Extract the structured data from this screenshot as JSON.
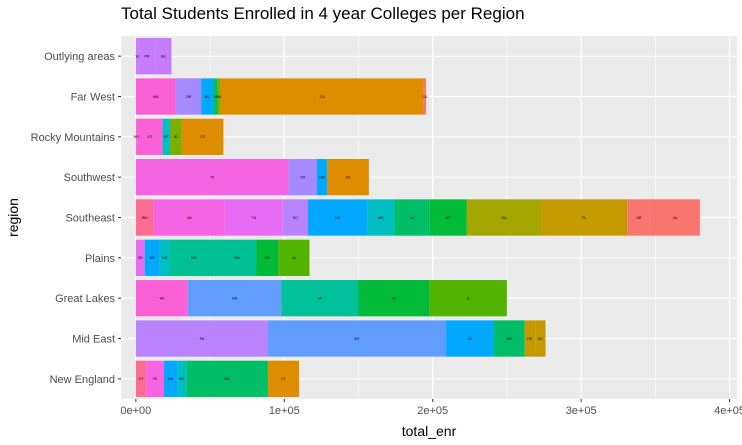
{
  "chart_data": {
    "type": "bar",
    "orientation": "horizontal",
    "stacked": true,
    "title": "Total Students Enrolled in 4 year Colleges per Region",
    "xlabel": "total_enr",
    "ylabel": "region",
    "xlim": [
      -10000,
      405000
    ],
    "x_ticks": [
      0,
      100000,
      200000,
      300000,
      400000
    ],
    "x_tick_labels": [
      "0e+00",
      "1e+05",
      "2e+05",
      "3e+05",
      "4e+05"
    ],
    "grid": true,
    "legend": "none",
    "categories": [
      "Outlying areas",
      "Far West",
      "Rocky Mountains",
      "Southwest",
      "Southeast",
      "Plains",
      "Great Lakes",
      "Mid East",
      "New England"
    ],
    "rows": [
      {
        "region": "Outlying areas",
        "segments": [
          {
            "label": "VI",
            "value": 2000,
            "color": "#c77cff"
          },
          {
            "label": "PR",
            "value": 11000,
            "color": "#c77cff"
          },
          {
            "label": "GU",
            "value": 11000,
            "color": "#c77cff"
          }
        ]
      },
      {
        "region": "Far West",
        "segments": [
          {
            "label": "WA",
            "value": 27000,
            "color": "#fb61d7"
          },
          {
            "label": "OR",
            "value": 17000,
            "color": "#a58aff"
          },
          {
            "label": "NV",
            "value": 8000,
            "color": "#00a9ff"
          },
          {
            "label": "HI",
            "value": 3000,
            "color": "#00be67"
          },
          {
            "label": "AK",
            "value": 2000,
            "color": "#7cae00"
          },
          {
            "label": "CA",
            "value": 137000,
            "color": "#de8c00"
          },
          {
            "label": "CA",
            "value": 1500,
            "color": "#f8766d"
          }
        ]
      },
      {
        "region": "Rocky Mountains",
        "segments": [
          {
            "label": "WY",
            "value": 1000,
            "color": "#fb61d7"
          },
          {
            "label": "UT",
            "value": 17000,
            "color": "#fb61d7"
          },
          {
            "label": "MT",
            "value": 5000,
            "color": "#00bfc4"
          },
          {
            "label": "ID",
            "value": 8000,
            "color": "#7cae00"
          },
          {
            "label": "CO",
            "value": 28000,
            "color": "#de8c00"
          }
        ]
      },
      {
        "region": "Southwest",
        "segments": [
          {
            "label": "TX",
            "value": 103000,
            "color": "#f564e3"
          },
          {
            "label": "OK",
            "value": 19000,
            "color": "#a58aff"
          },
          {
            "label": "NM",
            "value": 7000,
            "color": "#00a9ff"
          },
          {
            "label": "AZ",
            "value": 28000,
            "color": "#de8c00"
          }
        ]
      },
      {
        "region": "Southeast",
        "segments": [
          {
            "label": "WV",
            "value": 12000,
            "color": "#ff6c91"
          },
          {
            "label": "VA",
            "value": 48000,
            "color": "#f564e3"
          },
          {
            "label": "TN",
            "value": 39000,
            "color": "#e76bf3"
          },
          {
            "label": "SC",
            "value": 17000,
            "color": "#b983ff"
          },
          {
            "label": "NC",
            "value": 40000,
            "color": "#00a9ff"
          },
          {
            "label": "MS",
            "value": 18000,
            "color": "#00bfc4"
          },
          {
            "label": "LA",
            "value": 24000,
            "color": "#00be67"
          },
          {
            "label": "KY",
            "value": 25000,
            "color": "#00ba38"
          },
          {
            "label": "GA",
            "value": 50000,
            "color": "#a3a500"
          },
          {
            "label": "FL",
            "value": 58000,
            "color": "#c49a00"
          },
          {
            "label": "AR",
            "value": 16000,
            "color": "#f8766d"
          },
          {
            "label": "AL",
            "value": 33000,
            "color": "#f8766d"
          }
        ]
      },
      {
        "region": "Plains",
        "segments": [
          {
            "label": "SD",
            "value": 6000,
            "color": "#e76bf3"
          },
          {
            "label": "NE",
            "value": 10000,
            "color": "#00a9ff"
          },
          {
            "label": "ND",
            "value": 7000,
            "color": "#00bfc4"
          },
          {
            "label": "MO",
            "value": 32000,
            "color": "#00c094"
          },
          {
            "label": "MN",
            "value": 26000,
            "color": "#00c094"
          },
          {
            "label": "KS",
            "value": 15000,
            "color": "#00ba38"
          },
          {
            "label": "IA",
            "value": 21000,
            "color": "#53b400"
          }
        ]
      },
      {
        "region": "Great Lakes",
        "segments": [
          {
            "label": "WI",
            "value": 35000,
            "color": "#fb61d7"
          },
          {
            "label": "OH",
            "value": 63000,
            "color": "#619cff"
          },
          {
            "label": "MI",
            "value": 52000,
            "color": "#00c19a"
          },
          {
            "label": "IN",
            "value": 48000,
            "color": "#00ba38"
          },
          {
            "label": "IL",
            "value": 52000,
            "color": "#53b400"
          }
        ]
      },
      {
        "region": "Mid East",
        "segments": [
          {
            "label": "PA",
            "value": 89000,
            "color": "#b983ff"
          },
          {
            "label": "NY",
            "value": 120000,
            "color": "#619cff"
          },
          {
            "label": "NJ",
            "value": 32000,
            "color": "#00a9ff"
          },
          {
            "label": "MD",
            "value": 21000,
            "color": "#00be67"
          },
          {
            "label": "DE",
            "value": 7000,
            "color": "#c49a00"
          },
          {
            "label": "DC",
            "value": 7000,
            "color": "#c49a00"
          }
        ]
      },
      {
        "region": "New England",
        "segments": [
          {
            "label": "VT",
            "value": 7000,
            "color": "#ff6c91"
          },
          {
            "label": "RI",
            "value": 12000,
            "color": "#f564e3"
          },
          {
            "label": "NH",
            "value": 9000,
            "color": "#00a9ff"
          },
          {
            "label": "ME",
            "value": 6000,
            "color": "#00bfc4"
          },
          {
            "label": "MA",
            "value": 55000,
            "color": "#00be67"
          },
          {
            "label": "CT",
            "value": 21000,
            "color": "#de8c00"
          }
        ]
      }
    ]
  }
}
